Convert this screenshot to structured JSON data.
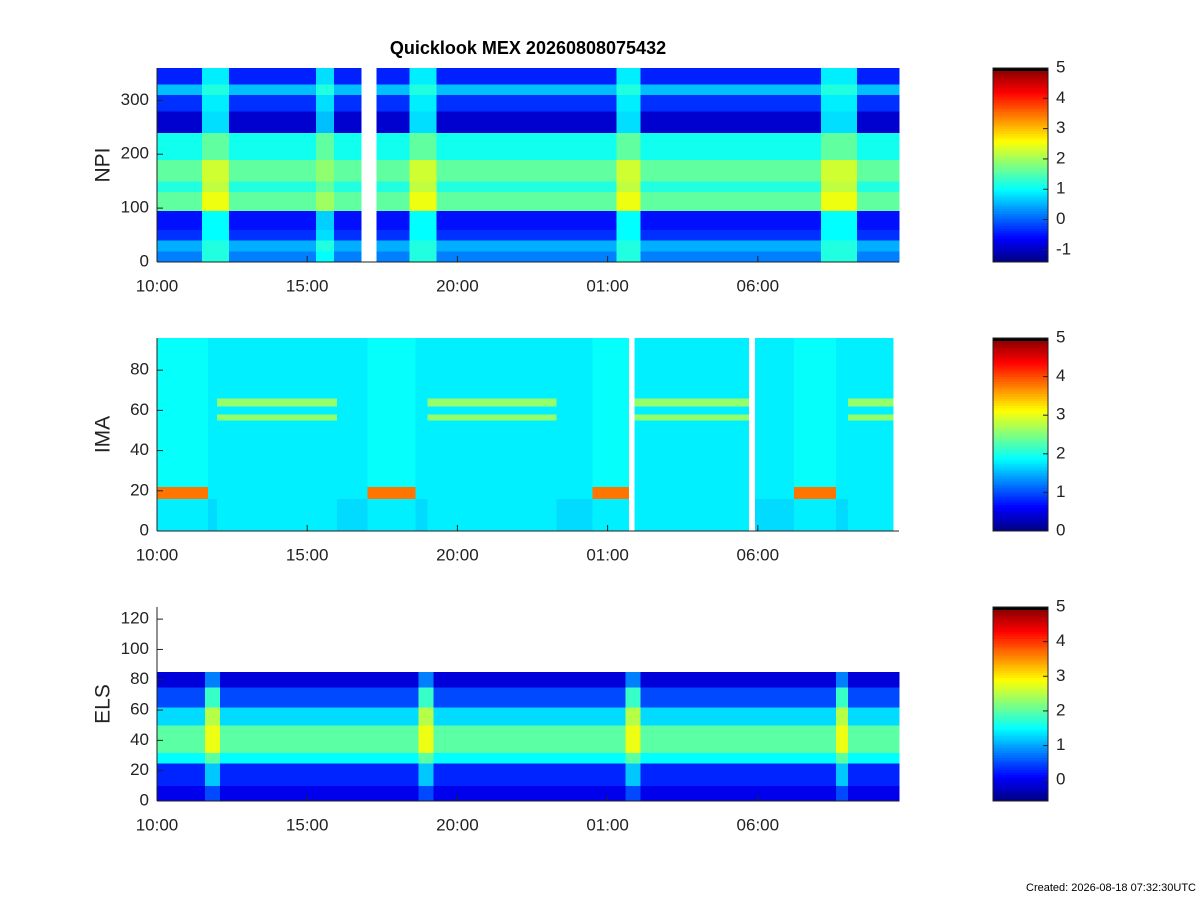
{
  "footer": "Created: 2026-08-18 07:32:30UTC",
  "chart_data": [
    {
      "type": "heatmap",
      "title": "Quicklook MEX 20260808075432",
      "ylabel": "NPI",
      "colormap": "jet",
      "xlim": [
        0,
        24.7
      ],
      "ylim": [
        0,
        360
      ],
      "clim": [
        -1.4,
        5
      ],
      "xticks": [
        {
          "value": 0,
          "label": "10:00"
        },
        {
          "value": 5,
          "label": "15:00"
        },
        {
          "value": 10,
          "label": "20:00"
        },
        {
          "value": 15,
          "label": "01:00"
        },
        {
          "value": 20,
          "label": "06:00"
        }
      ],
      "yticks": [
        0,
        100,
        200,
        300
      ],
      "cticks": [
        -1,
        0,
        1,
        2,
        3,
        4,
        5
      ],
      "x_edges": [
        0,
        1.5,
        2.4,
        5.3,
        5.9,
        6.8,
        7.3,
        8.4,
        9.3,
        15.3,
        16.1,
        22.1,
        23.3,
        24.7
      ],
      "y_edges": [
        0,
        20,
        40,
        60,
        95,
        130,
        150,
        190,
        240,
        280,
        310,
        330,
        360
      ],
      "z": [
        [
          0.2,
          0.5,
          -0.3,
          -0.5,
          1.6,
          1.2,
          1.6,
          1.1,
          -0.9,
          -0.3,
          0.6,
          -0.4
        ],
        [
          1.2,
          1.2,
          1.0,
          1.0,
          2.5,
          2.2,
          2.3,
          1.6,
          0.8,
          0.9,
          1.2,
          0.9
        ],
        [
          0.2,
          0.5,
          -0.3,
          -0.5,
          1.6,
          1.2,
          1.6,
          1.1,
          -0.9,
          -0.3,
          0.6,
          -0.4
        ],
        [
          1.0,
          1.2,
          0.8,
          0.7,
          2.0,
          1.6,
          1.9,
          1.6,
          0.6,
          0.8,
          1.2,
          0.8
        ],
        [
          0.2,
          0.5,
          -0.3,
          -0.5,
          1.6,
          1.2,
          1.6,
          1.1,
          -0.9,
          -0.3,
          0.6,
          -0.4
        ],
        [
          null,
          null,
          null,
          null,
          null,
          null,
          null,
          null,
          null,
          null,
          null,
          null
        ],
        [
          0.2,
          0.5,
          -0.3,
          -0.5,
          1.6,
          1.2,
          1.6,
          1.1,
          -0.9,
          -0.3,
          0.6,
          -0.4
        ],
        [
          1.2,
          1.2,
          1.0,
          1.0,
          2.5,
          2.2,
          2.3,
          1.6,
          0.8,
          0.9,
          1.2,
          0.9
        ],
        [
          0.2,
          0.5,
          -0.3,
          -0.5,
          1.6,
          1.2,
          1.6,
          1.1,
          -0.9,
          -0.3,
          0.6,
          -0.4
        ],
        [
          1.2,
          1.2,
          1.0,
          1.0,
          2.5,
          2.2,
          2.3,
          1.6,
          0.8,
          0.9,
          1.2,
          0.9
        ],
        [
          0.2,
          0.5,
          -0.3,
          -0.5,
          1.6,
          1.2,
          1.6,
          1.1,
          -0.9,
          -0.3,
          0.6,
          -0.4
        ],
        [
          1.2,
          1.2,
          1.0,
          1.0,
          2.5,
          2.2,
          2.3,
          1.6,
          0.8,
          0.9,
          1.2,
          0.9
        ],
        [
          0.2,
          0.5,
          -0.3,
          -0.5,
          1.6,
          1.2,
          1.6,
          1.1,
          -0.9,
          -0.3,
          0.6,
          -0.4
        ]
      ]
    },
    {
      "type": "heatmap",
      "ylabel": "IMA",
      "colormap": "jet",
      "xlim": [
        0,
        24.7
      ],
      "ylim": [
        0,
        96
      ],
      "clim": [
        0,
        5
      ],
      "xticks": [
        {
          "value": 0,
          "label": "10:00"
        },
        {
          "value": 5,
          "label": "15:00"
        },
        {
          "value": 10,
          "label": "20:00"
        },
        {
          "value": 15,
          "label": "01:00"
        },
        {
          "value": 20,
          "label": "06:00"
        }
      ],
      "yticks": [
        0,
        20,
        40,
        60,
        80
      ],
      "cticks": [
        0,
        1,
        2,
        3,
        4,
        5
      ],
      "x_edges": [
        0,
        1.7,
        2.0,
        6.0,
        7.0,
        8.6,
        9.0,
        13.3,
        14.5,
        15.7,
        15.9,
        19.7,
        19.9,
        21.2,
        22.6,
        23.0,
        24.5
      ],
      "y_edges": [
        0,
        16,
        22,
        55,
        58,
        62,
        66,
        96
      ],
      "z": [
        [
          1.8,
          3.8,
          1.9,
          1.9,
          1.9,
          1.9,
          1.9
        ],
        [
          1.7,
          1.8,
          1.8,
          1.8,
          1.8,
          1.8,
          1.8
        ],
        [
          1.8,
          1.8,
          1.8,
          2.6,
          1.8,
          2.6,
          1.8
        ],
        [
          1.7,
          1.8,
          1.8,
          1.8,
          1.8,
          1.8,
          1.8
        ],
        [
          1.8,
          3.8,
          1.9,
          1.9,
          1.9,
          1.9,
          1.9
        ],
        [
          1.7,
          1.8,
          1.8,
          1.8,
          1.8,
          1.8,
          1.8
        ],
        [
          1.8,
          1.8,
          1.8,
          2.6,
          1.8,
          2.6,
          1.8
        ],
        [
          1.7,
          1.8,
          1.8,
          1.8,
          1.8,
          1.8,
          1.8
        ],
        [
          1.8,
          3.8,
          1.9,
          1.9,
          1.9,
          1.9,
          1.9
        ],
        [
          null,
          null,
          null,
          null,
          null,
          null,
          null
        ],
        [
          1.8,
          1.8,
          1.8,
          2.6,
          1.8,
          2.6,
          1.8
        ],
        [
          null,
          null,
          null,
          null,
          null,
          null,
          null
        ],
        [
          1.7,
          1.8,
          1.8,
          1.8,
          1.8,
          1.8,
          1.8
        ],
        [
          1.8,
          3.8,
          1.9,
          1.9,
          1.9,
          1.9,
          1.9
        ],
        [
          1.7,
          1.8,
          1.8,
          1.8,
          1.8,
          1.8,
          1.8
        ],
        [
          1.8,
          1.8,
          1.8,
          2.6,
          1.8,
          2.6,
          1.8
        ]
      ]
    },
    {
      "type": "heatmap",
      "ylabel": "ELS",
      "colormap": "jet",
      "xlim": [
        0,
        24.7
      ],
      "ylim": [
        0,
        128
      ],
      "clim": [
        -0.6,
        5
      ],
      "xticks": [
        {
          "value": 0,
          "label": "10:00"
        },
        {
          "value": 5,
          "label": "15:00"
        },
        {
          "value": 10,
          "label": "20:00"
        },
        {
          "value": 15,
          "label": "01:00"
        },
        {
          "value": 20,
          "label": "06:00"
        }
      ],
      "yticks": [
        0,
        20,
        40,
        60,
        80,
        100,
        120
      ],
      "cticks": [
        0,
        1,
        2,
        3,
        4,
        5
      ],
      "x_edges": [
        0,
        1.6,
        2.1,
        8.7,
        9.2,
        15.6,
        16.1,
        22.6,
        23.0,
        24.7
      ],
      "y_edges": [
        0,
        10,
        25,
        32,
        50,
        62,
        75,
        85,
        128
      ],
      "z": [
        [
          0.0,
          0.3,
          1.5,
          2.0,
          1.3,
          0.5,
          -0.1,
          null
        ],
        [
          0.5,
          1.2,
          2.0,
          2.8,
          2.5,
          1.8,
          0.8,
          null
        ],
        [
          0.0,
          0.3,
          1.5,
          2.0,
          1.3,
          0.5,
          -0.1,
          null
        ],
        [
          0.5,
          1.2,
          2.0,
          2.8,
          2.5,
          1.8,
          0.8,
          null
        ],
        [
          0.0,
          0.3,
          1.5,
          2.0,
          1.3,
          0.5,
          -0.1,
          null
        ],
        [
          0.5,
          1.2,
          2.0,
          2.8,
          2.5,
          1.8,
          0.8,
          null
        ],
        [
          0.0,
          0.3,
          1.5,
          2.0,
          1.3,
          0.5,
          -0.1,
          null
        ],
        [
          0.5,
          1.2,
          2.0,
          2.8,
          2.5,
          1.8,
          0.8,
          null
        ],
        [
          0.0,
          0.3,
          1.5,
          2.0,
          1.3,
          0.5,
          -0.1,
          null
        ]
      ]
    }
  ]
}
